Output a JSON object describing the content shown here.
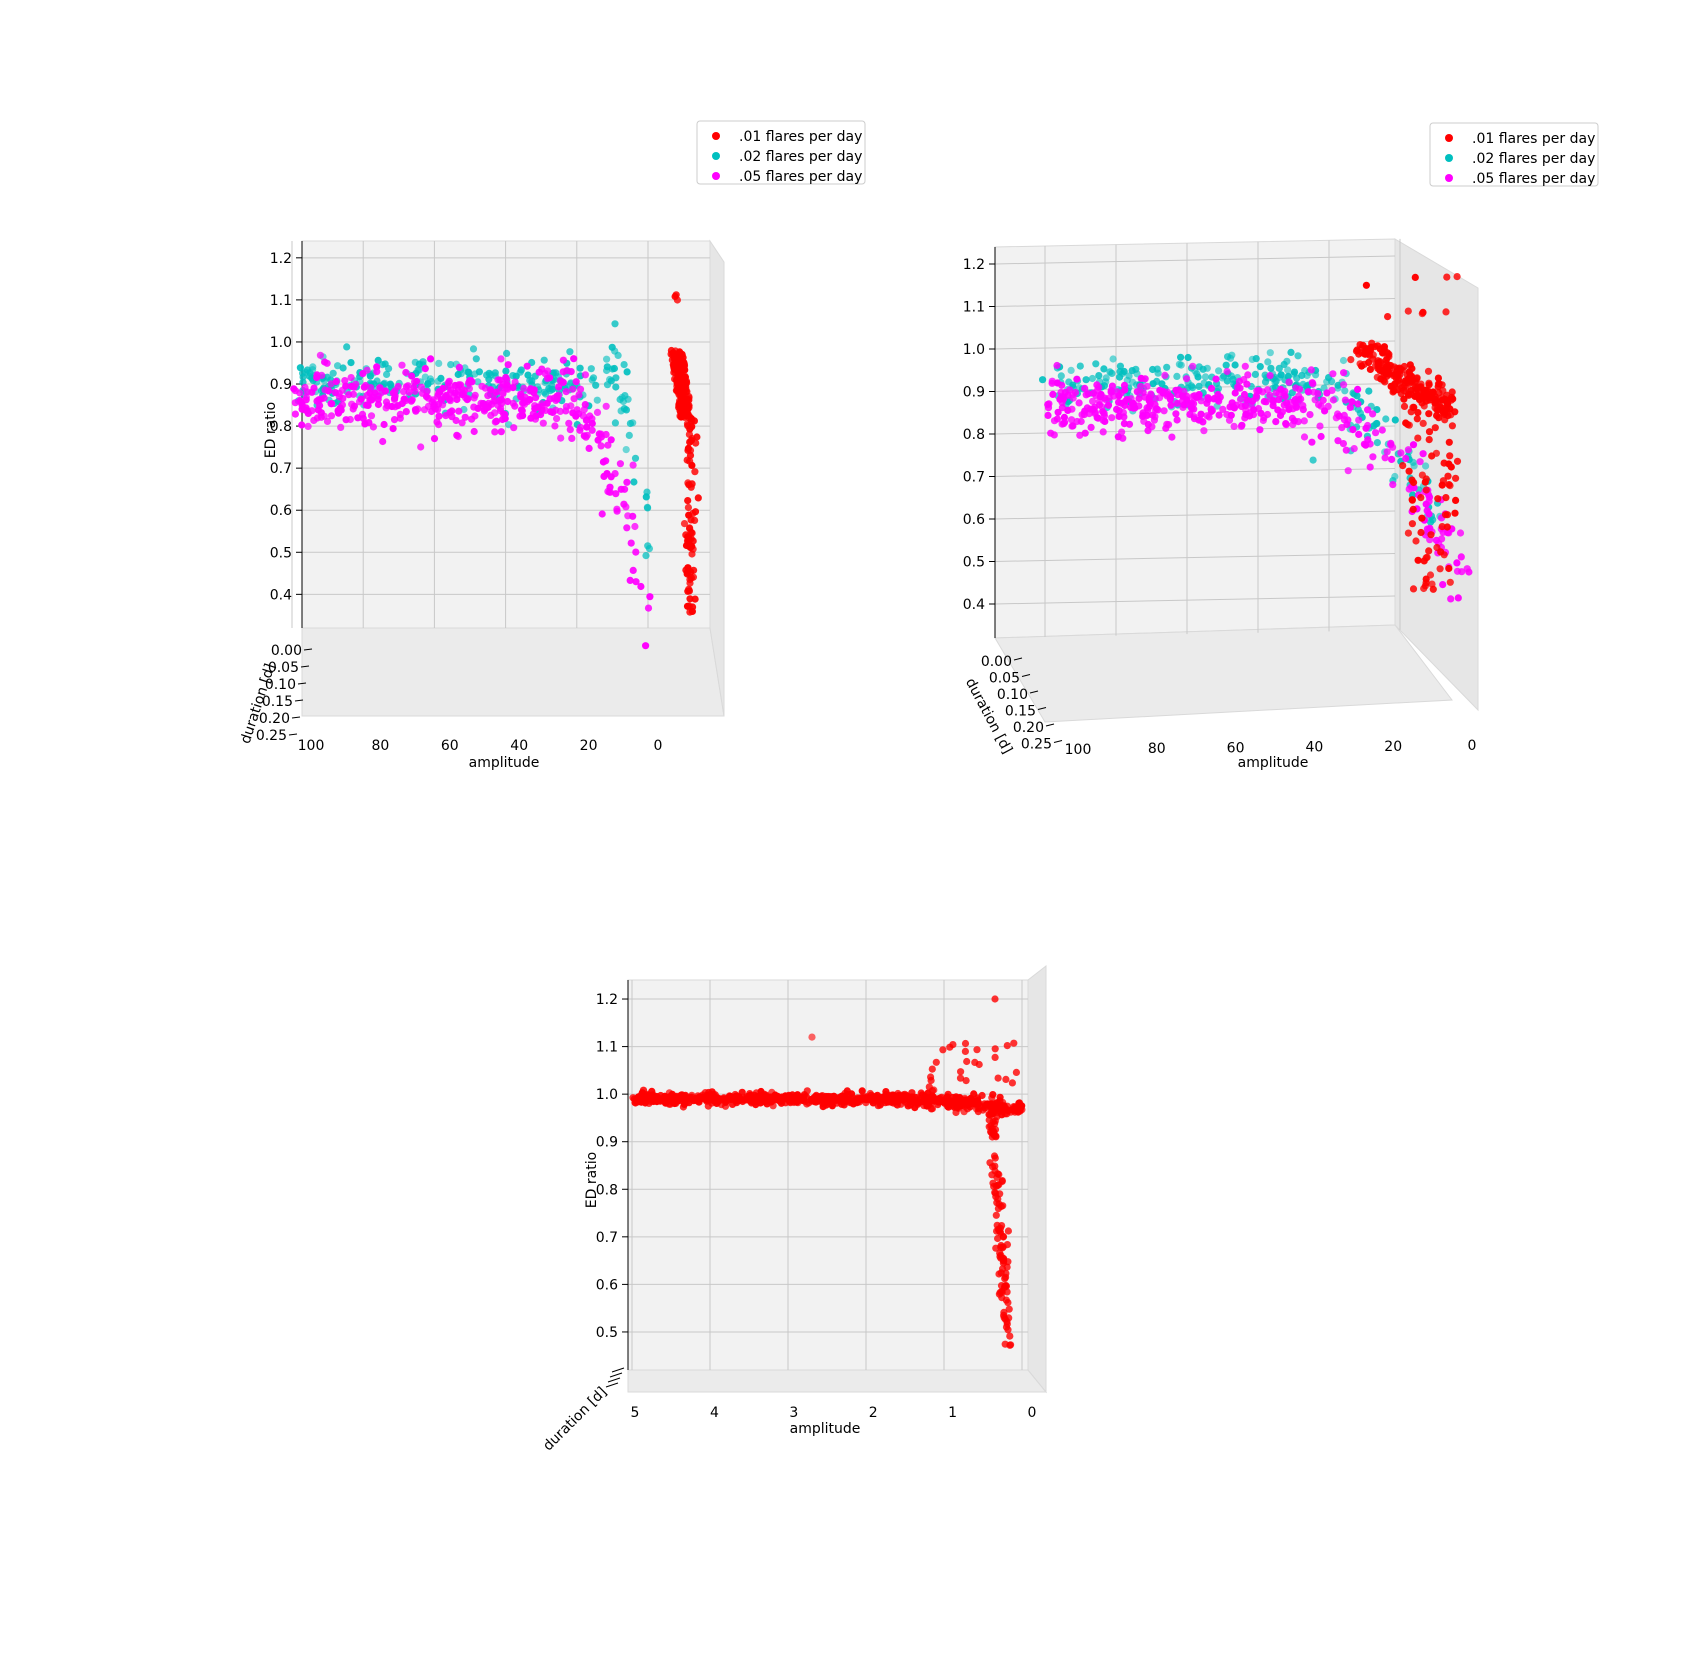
{
  "chart_data": [
    {
      "type": "scatter",
      "projection": "3d",
      "view": "front",
      "xlabel": "amplitude",
      "ylabel": "duration [d]",
      "zlabel": "ED ratio",
      "x_ticks": [
        "100",
        "80",
        "60",
        "40",
        "20",
        "0"
      ],
      "y_ticks": [
        "0.00",
        "0.05",
        "0.10",
        "0.15",
        "0.20",
        "0.25"
      ],
      "z_ticks": [
        "0.4",
        "0.5",
        "0.6",
        "0.7",
        "0.8",
        "0.9",
        "1.0",
        "1.1",
        "1.2"
      ],
      "xlim": [
        100,
        0
      ],
      "zlim": [
        0.32,
        1.24
      ],
      "legend": {
        "placement": "upper-right-outside",
        "entries": [
          ".01 flares per day",
          ".02 flares per day",
          ".05 flares per day"
        ]
      },
      "series": [
        {
          "name": ".01 flares per day",
          "color": "#ff0000",
          "x_range": [
            0,
            6
          ],
          "z_range": [
            0.35,
            1.18
          ]
        },
        {
          "name": ".02 flares per day",
          "color": "#00bfbf",
          "x_range": [
            0,
            98
          ],
          "z_range": [
            0.55,
            0.98
          ]
        },
        {
          "name": ".05 flares per day",
          "color": "#ff00ff",
          "x_range": [
            0,
            98
          ],
          "z_range": [
            0.32,
            1.04
          ]
        }
      ]
    },
    {
      "type": "scatter",
      "projection": "3d",
      "view": "rotated",
      "xlabel": "amplitude",
      "ylabel": "duration [d]",
      "zlabel": "",
      "x_ticks": [
        "100",
        "80",
        "60",
        "40",
        "20",
        "0"
      ],
      "y_ticks": [
        "0.00",
        "0.05",
        "0.10",
        "0.15",
        "0.20",
        "0.25"
      ],
      "z_ticks": [
        "0.4",
        "0.5",
        "0.6",
        "0.7",
        "0.8",
        "0.9",
        "1.0",
        "1.1",
        "1.2"
      ],
      "xlim": [
        100,
        0
      ],
      "zlim": [
        0.32,
        1.24
      ],
      "legend": {
        "placement": "upper-right-outside",
        "entries": [
          ".01 flares per day",
          ".02 flares per day",
          ".05 flares per day"
        ]
      },
      "series": [
        {
          "name": ".01 flares per day",
          "color": "#ff0000",
          "x_range": [
            0,
            20
          ],
          "z_range": [
            0.4,
            1.15
          ]
        },
        {
          "name": ".02 flares per day",
          "color": "#00bfbf",
          "x_range": [
            0,
            98
          ],
          "z_range": [
            0.5,
            0.98
          ]
        },
        {
          "name": ".05 flares per day",
          "color": "#ff00ff",
          "x_range": [
            0,
            98
          ],
          "z_range": [
            0.35,
            1.04
          ]
        }
      ]
    },
    {
      "type": "scatter",
      "projection": "3d",
      "view": "front",
      "xlabel": "amplitude",
      "ylabel": "duration [d]",
      "zlabel": "ED ratio",
      "x_ticks": [
        "5",
        "4",
        "3",
        "2",
        "1",
        "0"
      ],
      "z_ticks": [
        "0.5",
        "0.6",
        "0.7",
        "0.8",
        "0.9",
        "1.0",
        "1.1",
        "1.2"
      ],
      "xlim": [
        5,
        0
      ],
      "zlim": [
        0.42,
        1.24
      ],
      "series": [
        {
          "name": "",
          "color": "#ff0000",
          "x_range": [
            0,
            5
          ],
          "z_range": [
            0.43,
            1.2
          ]
        }
      ]
    }
  ]
}
